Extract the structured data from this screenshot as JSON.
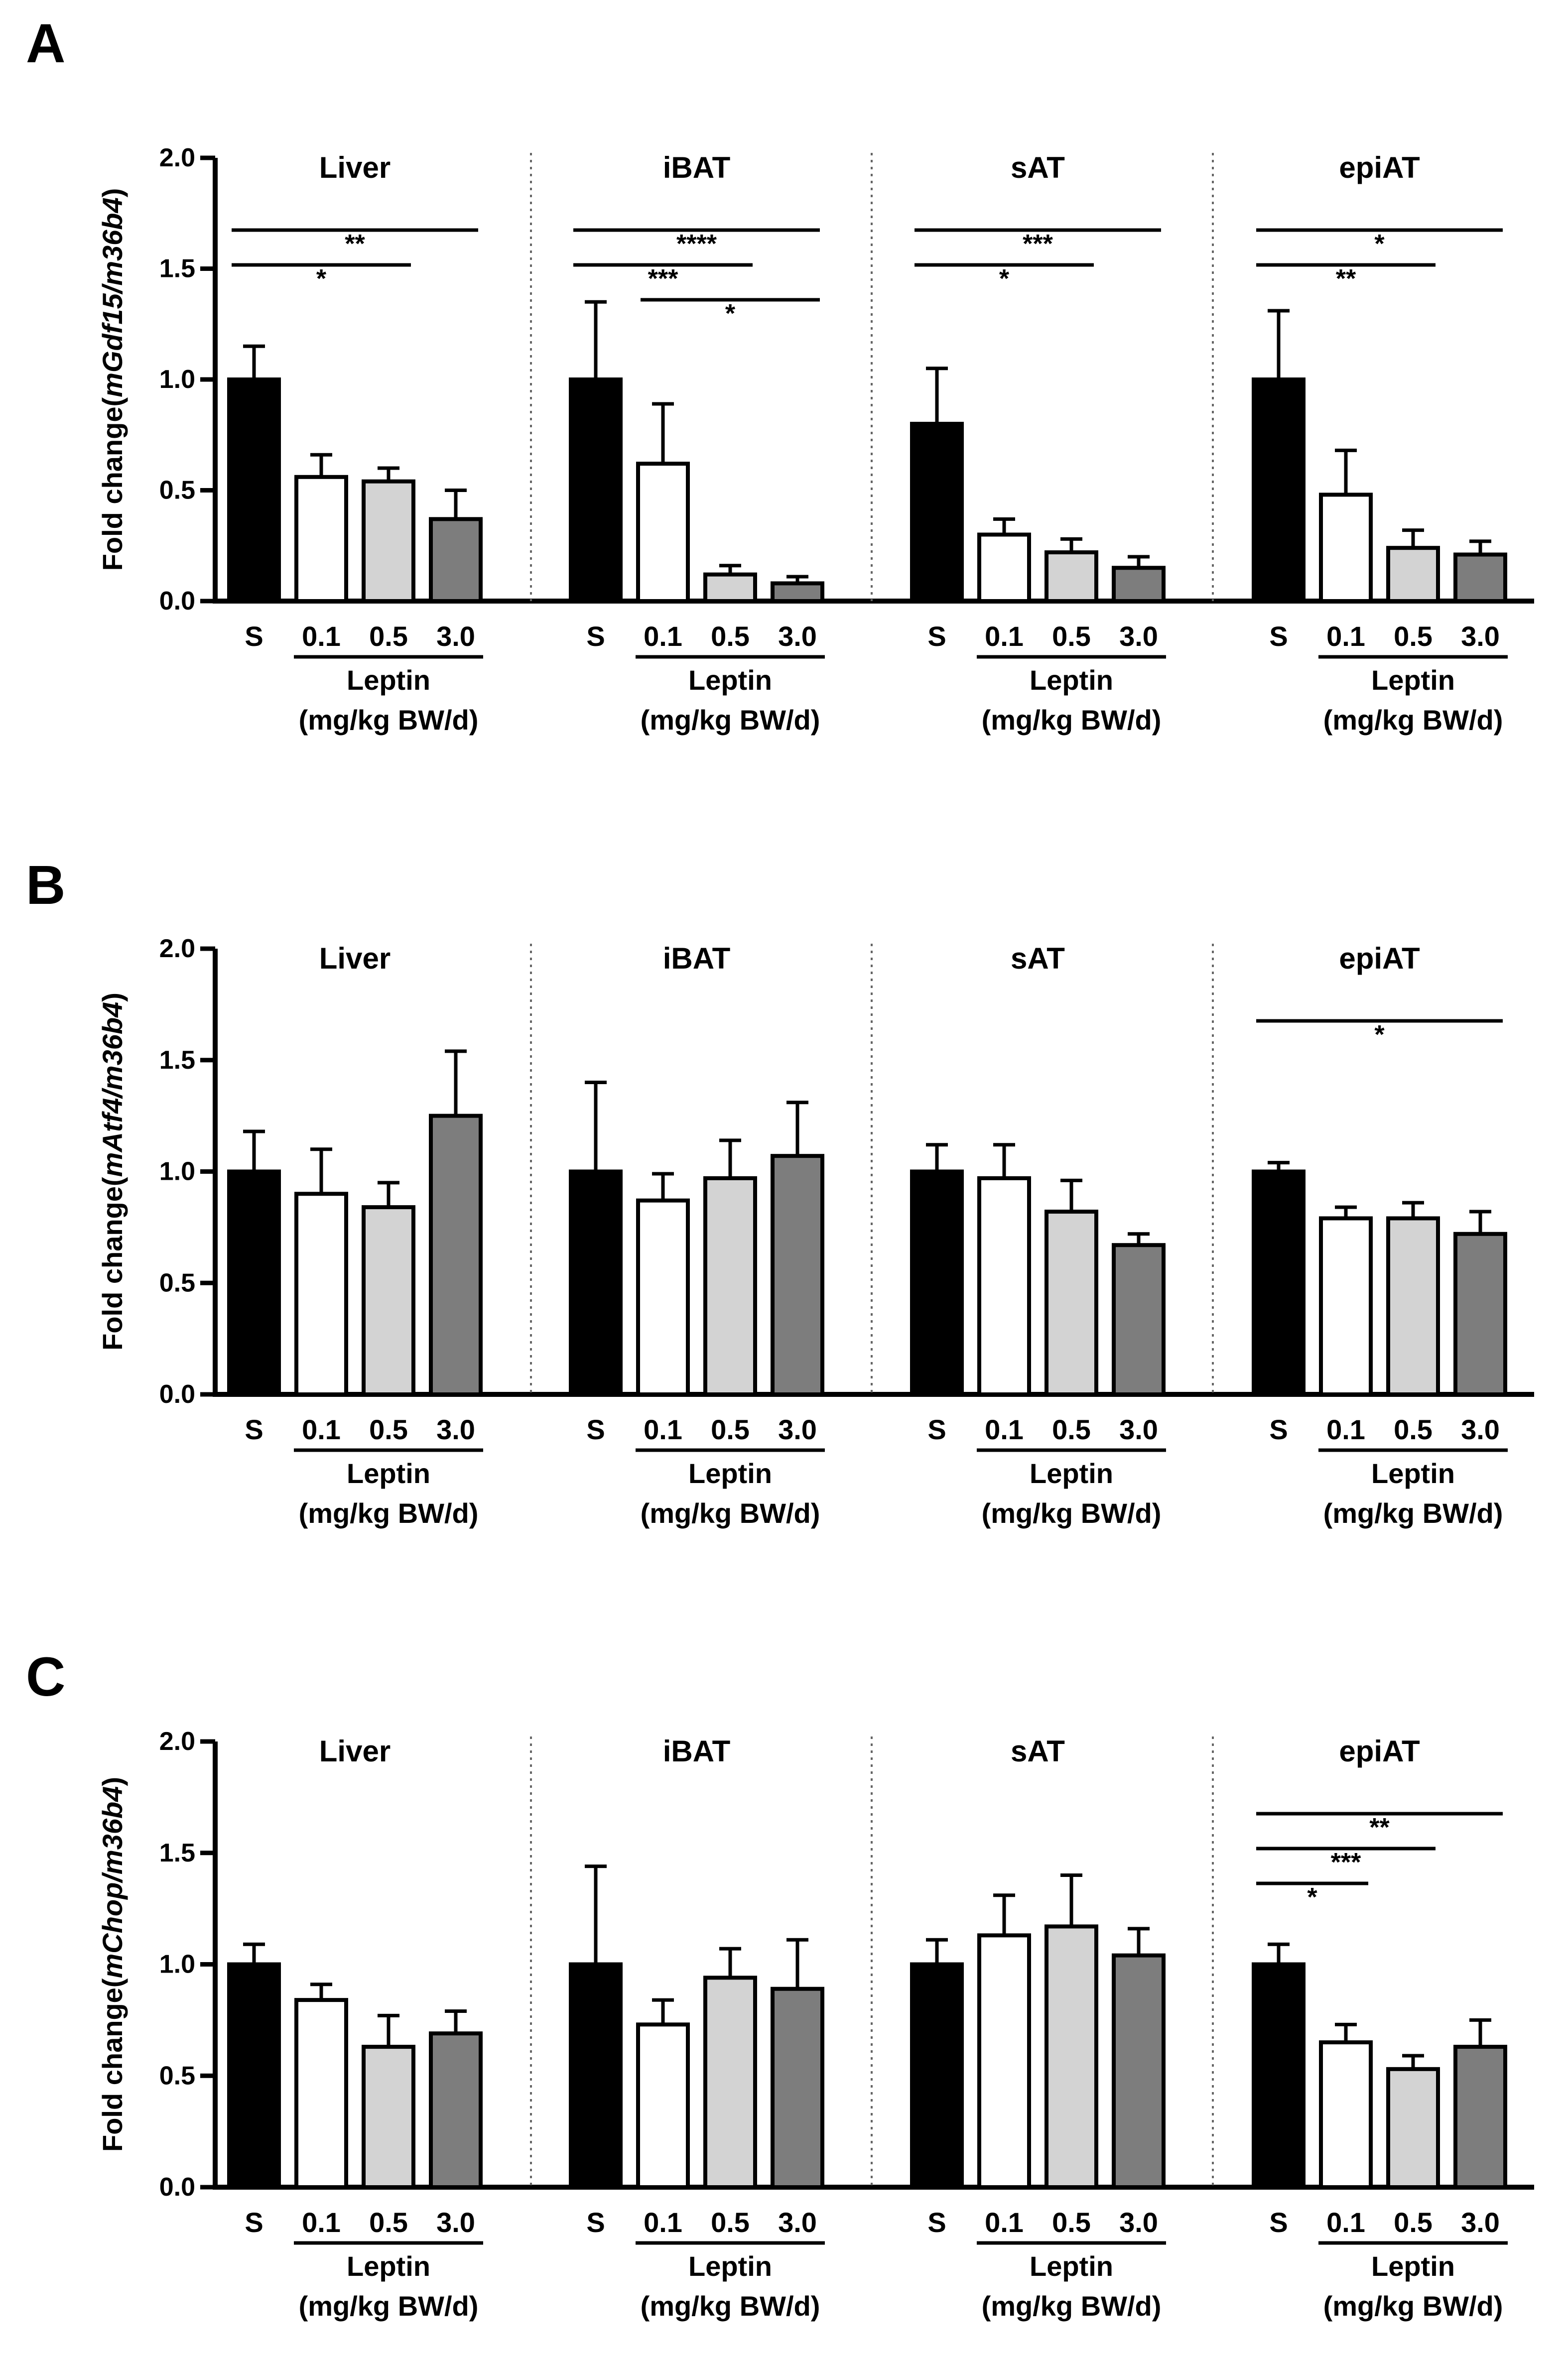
{
  "figure": {
    "groups": [
      "Liver",
      "iBAT",
      "sAT",
      "epiAT"
    ],
    "x_labels": [
      "S",
      "0.1",
      "0.5",
      "3.0"
    ],
    "treatment_label": "Leptin",
    "treatment_unit": "(mg/kg BW/d)",
    "bar_colors": [
      "#000000",
      "#ffffff",
      "#d3d3d3",
      "#7d7d7d"
    ]
  },
  "chart_data": [
    {
      "panel": "A",
      "type": "bar",
      "ylabel_prefix": "Fold change(",
      "ylabel_gene": "mGdf15/m36b4",
      "ylabel_suffix": ")",
      "ylim": [
        0,
        2.0
      ],
      "yticks": [
        "0.0",
        "0.5",
        "1.0",
        "1.5",
        "2.0"
      ],
      "groups": [
        {
          "name": "Liver",
          "values": [
            1.0,
            0.56,
            0.54,
            0.37
          ],
          "errors": [
            0.15,
            0.1,
            0.06,
            0.13
          ],
          "sig": [
            {
              "from": 0,
              "to": 3,
              "label": "**"
            },
            {
              "from": 0,
              "to": 2,
              "label": "*"
            }
          ]
        },
        {
          "name": "iBAT",
          "values": [
            1.0,
            0.62,
            0.12,
            0.08
          ],
          "errors": [
            0.35,
            0.27,
            0.04,
            0.03
          ],
          "sig": [
            {
              "from": 0,
              "to": 3,
              "label": "****"
            },
            {
              "from": 0,
              "to": 2,
              "label": "***"
            },
            {
              "from": 1,
              "to": 3,
              "label": "*"
            }
          ]
        },
        {
          "name": "sAT",
          "values": [
            0.8,
            0.3,
            0.22,
            0.15
          ],
          "errors": [
            0.25,
            0.07,
            0.06,
            0.05
          ],
          "sig": [
            {
              "from": 0,
              "to": 3,
              "label": "***"
            },
            {
              "from": 0,
              "to": 2,
              "label": "*"
            }
          ]
        },
        {
          "name": "epiAT",
          "values": [
            1.0,
            0.48,
            0.24,
            0.21
          ],
          "errors": [
            0.31,
            0.2,
            0.08,
            0.06
          ],
          "sig": [
            {
              "from": 0,
              "to": 3,
              "label": "*"
            },
            {
              "from": 0,
              "to": 2,
              "label": "**"
            }
          ]
        }
      ]
    },
    {
      "panel": "B",
      "type": "bar",
      "ylabel_prefix": "Fold change(",
      "ylabel_gene": "mAtf4/m36b4",
      "ylabel_suffix": ")",
      "ylim": [
        0,
        2.0
      ],
      "yticks": [
        "0.0",
        "0.5",
        "1.0",
        "1.5",
        "2.0"
      ],
      "groups": [
        {
          "name": "Liver",
          "values": [
            1.0,
            0.9,
            0.84,
            1.25
          ],
          "errors": [
            0.18,
            0.2,
            0.11,
            0.29
          ],
          "sig": []
        },
        {
          "name": "iBAT",
          "values": [
            1.0,
            0.87,
            0.97,
            1.07
          ],
          "errors": [
            0.4,
            0.12,
            0.17,
            0.24
          ],
          "sig": []
        },
        {
          "name": "sAT",
          "values": [
            1.0,
            0.97,
            0.82,
            0.67
          ],
          "errors": [
            0.12,
            0.15,
            0.14,
            0.05
          ],
          "sig": []
        },
        {
          "name": "epiAT",
          "values": [
            1.0,
            0.79,
            0.79,
            0.72
          ],
          "errors": [
            0.04,
            0.05,
            0.07,
            0.1
          ],
          "sig": [
            {
              "from": 0,
              "to": 3,
              "label": "*"
            }
          ]
        }
      ]
    },
    {
      "panel": "C",
      "type": "bar",
      "ylabel_prefix": "Fold change(",
      "ylabel_gene": "mChop/m36b4",
      "ylabel_suffix": ")",
      "ylim": [
        0,
        2.0
      ],
      "yticks": [
        "0.0",
        "0.5",
        "1.0",
        "1.5",
        "2.0"
      ],
      "groups": [
        {
          "name": "Liver",
          "values": [
            1.0,
            0.84,
            0.63,
            0.69
          ],
          "errors": [
            0.09,
            0.07,
            0.14,
            0.1
          ],
          "sig": []
        },
        {
          "name": "iBAT",
          "values": [
            1.0,
            0.73,
            0.94,
            0.89
          ],
          "errors": [
            0.44,
            0.11,
            0.13,
            0.22
          ],
          "sig": []
        },
        {
          "name": "sAT",
          "values": [
            1.0,
            1.13,
            1.17,
            1.04
          ],
          "errors": [
            0.11,
            0.18,
            0.23,
            0.12
          ],
          "sig": []
        },
        {
          "name": "epiAT",
          "values": [
            1.0,
            0.65,
            0.53,
            0.63
          ],
          "errors": [
            0.09,
            0.08,
            0.06,
            0.12
          ],
          "sig": [
            {
              "from": 0,
              "to": 3,
              "label": "**"
            },
            {
              "from": 0,
              "to": 2,
              "label": "***"
            },
            {
              "from": 0,
              "to": 1,
              "label": "*"
            }
          ]
        }
      ]
    }
  ]
}
